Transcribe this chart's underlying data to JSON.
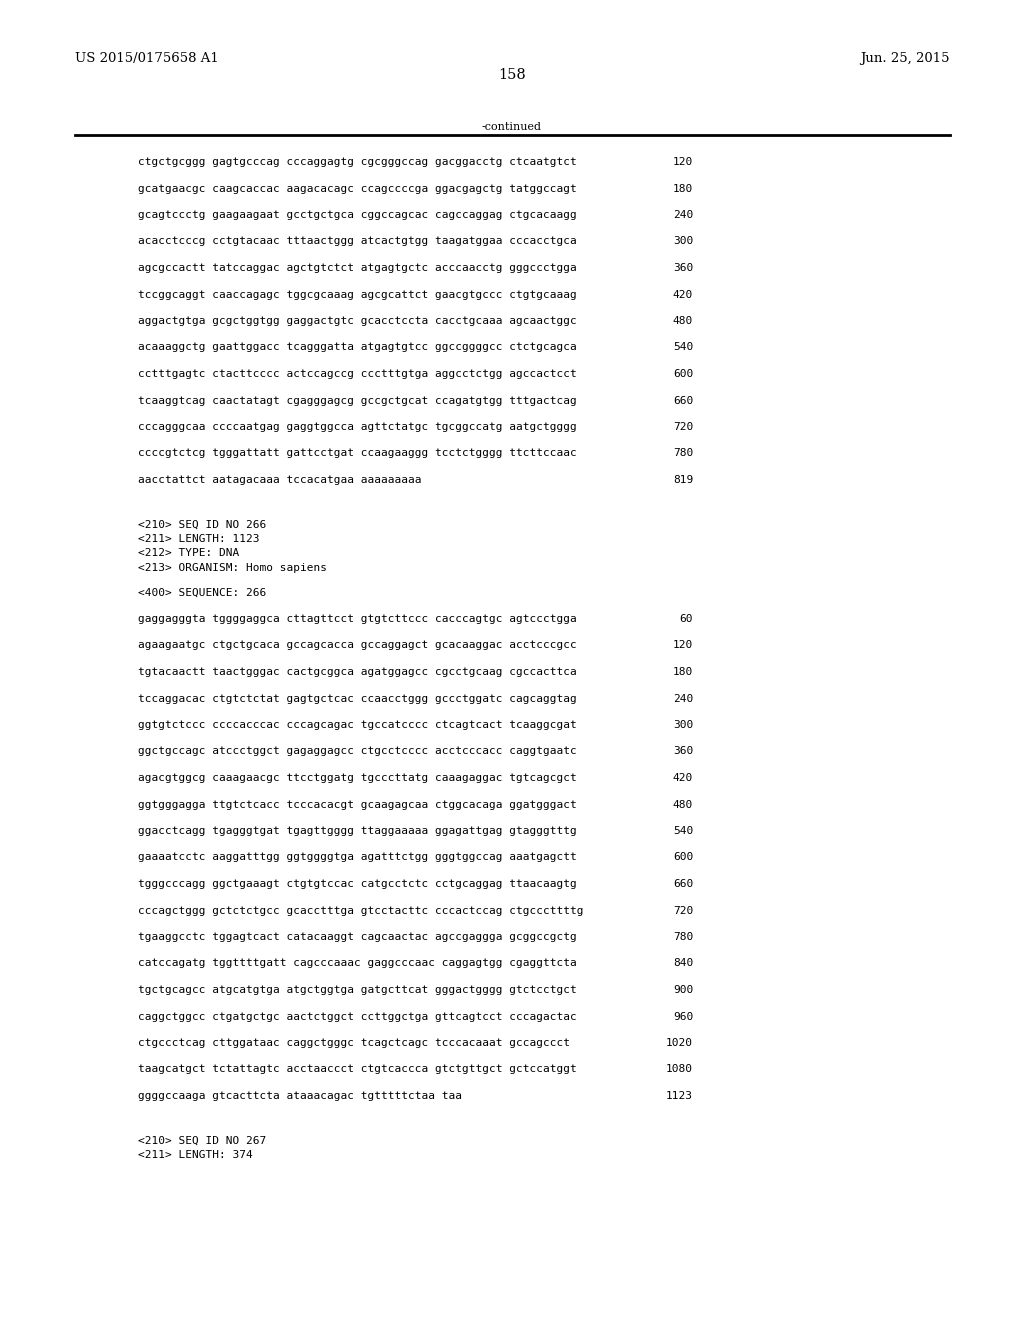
{
  "header_left": "US 2015/0175658 A1",
  "header_right": "Jun. 25, 2015",
  "page_number": "158",
  "continued_label": "-continued",
  "background_color": "#ffffff",
  "text_color": "#000000",
  "font_size_header": 9.5,
  "font_size_body": 8.0,
  "font_size_page": 10.5,
  "sequence_lines_top": [
    [
      "ctgctgcggg gagtgcccag cccaggagtg cgcgggccag gacggacctg ctcaatgtct",
      "120"
    ],
    [
      "gcatgaacgc caagcaccac aagacacagc ccagccccga ggacgagctg tatggccagt",
      "180"
    ],
    [
      "gcagtccctg gaagaagaat gcctgctgca cggccagcac cagccaggag ctgcacaagg",
      "240"
    ],
    [
      "acacctcccg cctgtacaac tttaactggg atcactgtgg taagatggaa cccacctgca",
      "300"
    ],
    [
      "agcgccactt tatccaggac agctgtctct atgagtgctc acccaacctg gggccctgga",
      "360"
    ],
    [
      "tccggcaggt caaccagagc tggcgcaaag agcgcattct gaacgtgccc ctgtgcaaag",
      "420"
    ],
    [
      "aggactgtga gcgctggtgg gaggactgtc gcacctccta cacctgcaaa agcaactggc",
      "480"
    ],
    [
      "acaaaggctg gaattggacc tcagggatta atgagtgtcc ggccggggcc ctctgcagca",
      "540"
    ],
    [
      "cctttgagtc ctacttcccc actccagccg ccctttgtga aggcctctgg agccactcct",
      "600"
    ],
    [
      "tcaaggtcag caactatagt cgagggagcg gccgctgcat ccagatgtgg tttgactcag",
      "660"
    ],
    [
      "cccagggcaa ccccaatgag gaggtggcca agttctatgc tgcggccatg aatgctgggg",
      "720"
    ],
    [
      "ccccgtctcg tgggattatt gattcctgat ccaagaaggg tcctctgggg ttcttccaac",
      "780"
    ],
    [
      "aacctattct aatagacaaa tccacatgaa aaaaaaaaa",
      "819"
    ]
  ],
  "seq_info_266": [
    "<210> SEQ ID NO 266",
    "<211> LENGTH: 1123",
    "<212> TYPE: DNA",
    "<213> ORGANISM: Homo sapiens"
  ],
  "seq_400_266": "<400> SEQUENCE: 266",
  "sequence_lines_266": [
    [
      "gaggagggta tggggaggca cttagttcct gtgtcttccc cacccagtgc agtccctgga",
      "60"
    ],
    [
      "agaagaatgc ctgctgcaca gccagcacca gccaggagct gcacaaggac acctcccgcc",
      "120"
    ],
    [
      "tgtacaactt taactgggac cactgcggca agatggagcc cgcctgcaag cgccacttca",
      "180"
    ],
    [
      "tccaggacac ctgtctctat gagtgctcac ccaacctggg gccctggatc cagcaggtag",
      "240"
    ],
    [
      "ggtgtctccc ccccacccac cccagcagac tgccatcccc ctcagtcact tcaaggcgat",
      "300"
    ],
    [
      "ggctgccagc atccctggct gagaggagcc ctgcctcccc acctcccacc caggtgaatc",
      "360"
    ],
    [
      "agacgtggcg caaagaacgc ttcctggatg tgcccttatg caaagaggac tgtcagcgct",
      "420"
    ],
    [
      "ggtgggagga ttgtctcacc tcccacacgt gcaagagcaa ctggcacaga ggatgggact",
      "480"
    ],
    [
      "ggacctcagg tgagggtgat tgagttgggg ttaggaaaaa ggagattgag gtagggtttg",
      "540"
    ],
    [
      "gaaaatcctc aaggatttgg ggtggggtga agatttctgg gggtggccag aaatgagctt",
      "600"
    ],
    [
      "tgggcccagg ggctgaaagt ctgtgtccac catgcctctc cctgcaggag ttaacaagtg",
      "660"
    ],
    [
      "cccagctggg gctctctgcc gcacctttga gtcctacttc cccactccag ctgcccttttg",
      "720"
    ],
    [
      "tgaaggcctc tggagtcact catacaaggt cagcaactac agccgaggga gcggccgctg",
      "780"
    ],
    [
      "catccagatg tggttttgatt cagcccaaac gaggcccaac caggagtgg cgaggttcta",
      "840"
    ],
    [
      "tgctgcagcc atgcatgtga atgctggtga gatgcttcat gggactgggg gtctcctgct",
      "900"
    ],
    [
      "caggctggcc ctgatgctgc aactctggct ccttggctga gttcagtcct cccagactac",
      "960"
    ],
    [
      "ctgccctcag cttggataac caggctgggc tcagctcagc tcccacaaat gccagccct",
      "1020"
    ],
    [
      "taagcatgct tctattagtc acctaaccct ctgtcaccca gtctgttgct gctccatggt",
      "1080"
    ],
    [
      "ggggccaaga gtcacttcta ataaacagac tgtttttctaa taa",
      "1123"
    ]
  ],
  "seq_info_267": [
    "<210> SEQ ID NO 267",
    "<211> LENGTH: 374"
  ]
}
